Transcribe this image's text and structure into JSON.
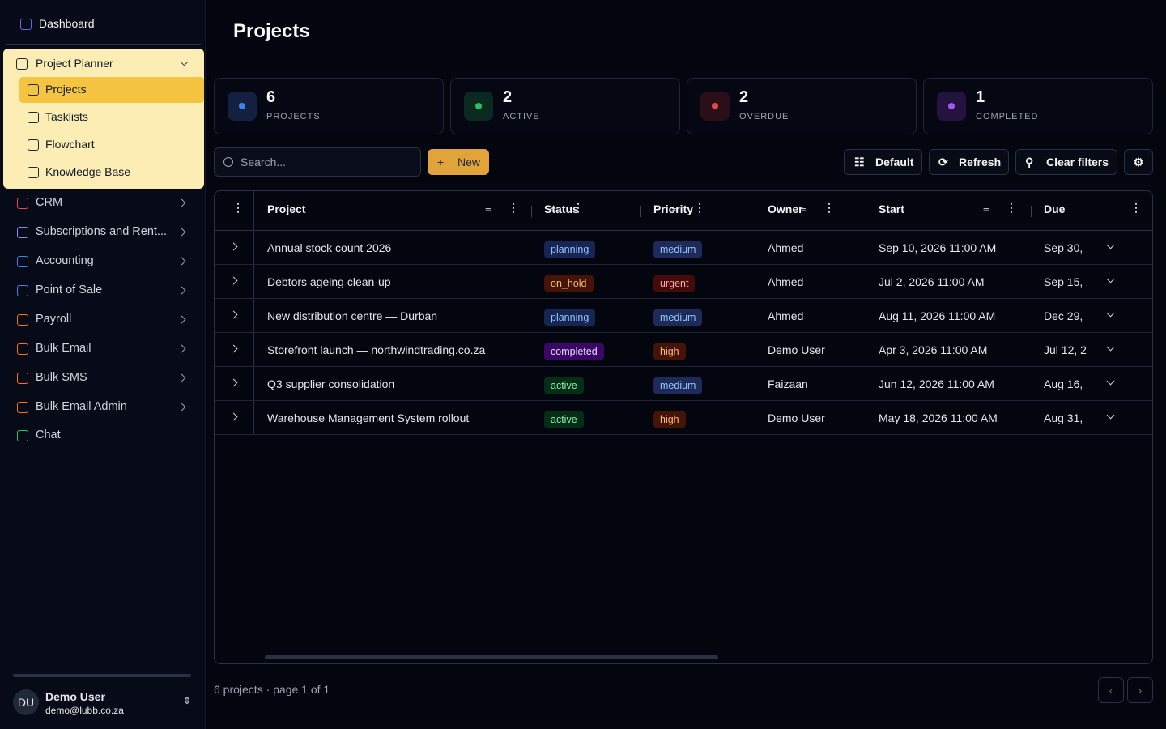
{
  "sidebar": {
    "dashboard": "Dashboard",
    "group": {
      "title": "Project Planner",
      "items": [
        "Projects",
        "Tasklists",
        "Flowchart",
        "Knowledge Base"
      ]
    },
    "nav": [
      "CRM",
      "Subscriptions and Rent...",
      "Accounting",
      "Point of Sale",
      "Payroll",
      "Bulk Email",
      "Bulk SMS",
      "Bulk Email Admin",
      "Chat"
    ],
    "user": {
      "initials": "DU",
      "name": "Demo User",
      "email": "demo@lubb.co.za"
    }
  },
  "header": {
    "title": "Projects"
  },
  "stats": [
    {
      "value": 6,
      "label": "PROJECTS"
    },
    {
      "value": 2,
      "label": "ACTIVE"
    },
    {
      "value": 2,
      "label": "OVERDUE"
    },
    {
      "value": 1,
      "label": "COMPLETED"
    }
  ],
  "toolbar": {
    "search": "Search...",
    "new": "New",
    "default": "Default",
    "refresh": "Refresh",
    "clear": "Clear filters"
  },
  "table": {
    "columns": [
      "Project",
      "Status",
      "Priority",
      "Owner",
      "Start",
      "Due"
    ],
    "rows": [
      [
        "Annual stock count 2026",
        "planning",
        "medium",
        "Ahmed",
        "Sep 10, 2026 11:00 AM",
        "Sep 30,"
      ],
      [
        "Debtors ageing clean-up",
        "on_hold",
        "urgent",
        "Ahmed",
        "Jul 2, 2026 11:00 AM",
        "Sep 15, 2"
      ],
      [
        "New distribution centre — Durban",
        "planning",
        "medium",
        "Ahmed",
        "Aug 11, 2026 11:00 AM",
        "Dec 29,"
      ],
      [
        "Storefront launch — northwindtrading.co.za",
        "completed",
        "high",
        "Demo User",
        "Apr 3, 2026 11:00 AM",
        "Jul 12, 2"
      ],
      [
        "Q3 supplier consolidation",
        "active",
        "medium",
        "Faizaan",
        "Jun 12, 2026 11:00 AM",
        "Aug 16,"
      ],
      [
        "Warehouse Management System rollout",
        "active",
        "high",
        "Demo User",
        "May 18, 2026 11:00 AM",
        "Aug 31,"
      ]
    ]
  },
  "footer": {
    "summary": "6 projects · page 1 of 1"
  }
}
